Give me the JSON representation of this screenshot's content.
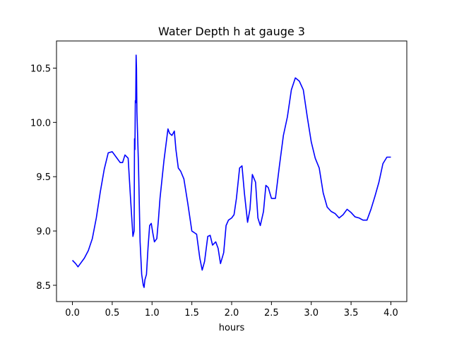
{
  "chart_data": {
    "type": "line",
    "title": "Water Depth h at gauge 3",
    "xlabel": "hours",
    "ylabel": "",
    "xlim": [
      -0.2,
      4.2
    ],
    "ylim": [
      8.35,
      10.75
    ],
    "xticks": [
      0.0,
      0.5,
      1.0,
      1.5,
      2.0,
      2.5,
      3.0,
      3.5,
      4.0
    ],
    "xtick_labels": [
      "0.0",
      "0.5",
      "1.0",
      "1.5",
      "2.0",
      "2.5",
      "3.0",
      "3.5",
      "4.0"
    ],
    "yticks": [
      8.5,
      9.0,
      9.5,
      10.0,
      10.5
    ],
    "ytick_labels": [
      "8.5",
      "9.0",
      "9.5",
      "10.0",
      "10.5"
    ],
    "grid": false,
    "legend": "none",
    "series": [
      {
        "color": "#0000ff",
        "x": [
          0.0,
          0.04,
          0.07,
          0.1,
          0.15,
          0.2,
          0.25,
          0.3,
          0.35,
          0.4,
          0.45,
          0.5,
          0.55,
          0.6,
          0.63,
          0.66,
          0.7,
          0.73,
          0.76,
          0.775,
          0.78,
          0.785,
          0.79,
          0.795,
          0.8,
          0.805,
          0.81,
          0.83,
          0.85,
          0.87,
          0.89,
          0.9,
          0.91,
          0.93,
          0.95,
          0.97,
          0.99,
          1.01,
          1.03,
          1.06,
          1.08,
          1.1,
          1.15,
          1.2,
          1.22,
          1.25,
          1.28,
          1.3,
          1.33,
          1.36,
          1.4,
          1.45,
          1.5,
          1.54,
          1.56,
          1.6,
          1.63,
          1.66,
          1.7,
          1.73,
          1.76,
          1.8,
          1.83,
          1.86,
          1.9,
          1.93,
          1.96,
          2.0,
          2.03,
          2.06,
          2.1,
          2.13,
          2.16,
          2.2,
          2.23,
          2.26,
          2.3,
          2.33,
          2.36,
          2.4,
          2.43,
          2.46,
          2.5,
          2.55,
          2.6,
          2.65,
          2.7,
          2.75,
          2.8,
          2.85,
          2.9,
          2.95,
          3.0,
          3.05,
          3.1,
          3.15,
          3.2,
          3.25,
          3.3,
          3.35,
          3.4,
          3.45,
          3.5,
          3.55,
          3.6,
          3.65,
          3.7,
          3.75,
          3.8,
          3.85,
          3.9,
          3.95,
          4.0
        ],
        "y": [
          8.73,
          8.7,
          8.67,
          8.7,
          8.75,
          8.82,
          8.93,
          9.12,
          9.36,
          9.57,
          9.72,
          9.73,
          9.68,
          9.63,
          9.63,
          9.7,
          9.67,
          9.3,
          8.95,
          9.0,
          9.85,
          9.75,
          10.2,
          10.18,
          10.62,
          10.5,
          10.1,
          9.6,
          8.9,
          8.6,
          8.5,
          8.48,
          8.55,
          8.6,
          8.85,
          9.05,
          9.07,
          8.98,
          8.9,
          8.93,
          9.1,
          9.3,
          9.65,
          9.94,
          9.9,
          9.88,
          9.92,
          9.75,
          9.58,
          9.55,
          9.48,
          9.25,
          9.0,
          8.98,
          8.97,
          8.75,
          8.64,
          8.72,
          8.95,
          8.96,
          8.87,
          8.9,
          8.84,
          8.7,
          8.8,
          9.05,
          9.1,
          9.12,
          9.15,
          9.3,
          9.58,
          9.6,
          9.35,
          9.08,
          9.2,
          9.52,
          9.45,
          9.12,
          9.05,
          9.18,
          9.42,
          9.4,
          9.3,
          9.3,
          9.6,
          9.88,
          10.05,
          10.3,
          10.41,
          10.38,
          10.3,
          10.05,
          9.82,
          9.67,
          9.58,
          9.35,
          9.22,
          9.18,
          9.16,
          9.12,
          9.15,
          9.2,
          9.17,
          9.13,
          9.12,
          9.1,
          9.1,
          9.2,
          9.32,
          9.45,
          9.62,
          9.68,
          9.68
        ]
      }
    ]
  }
}
